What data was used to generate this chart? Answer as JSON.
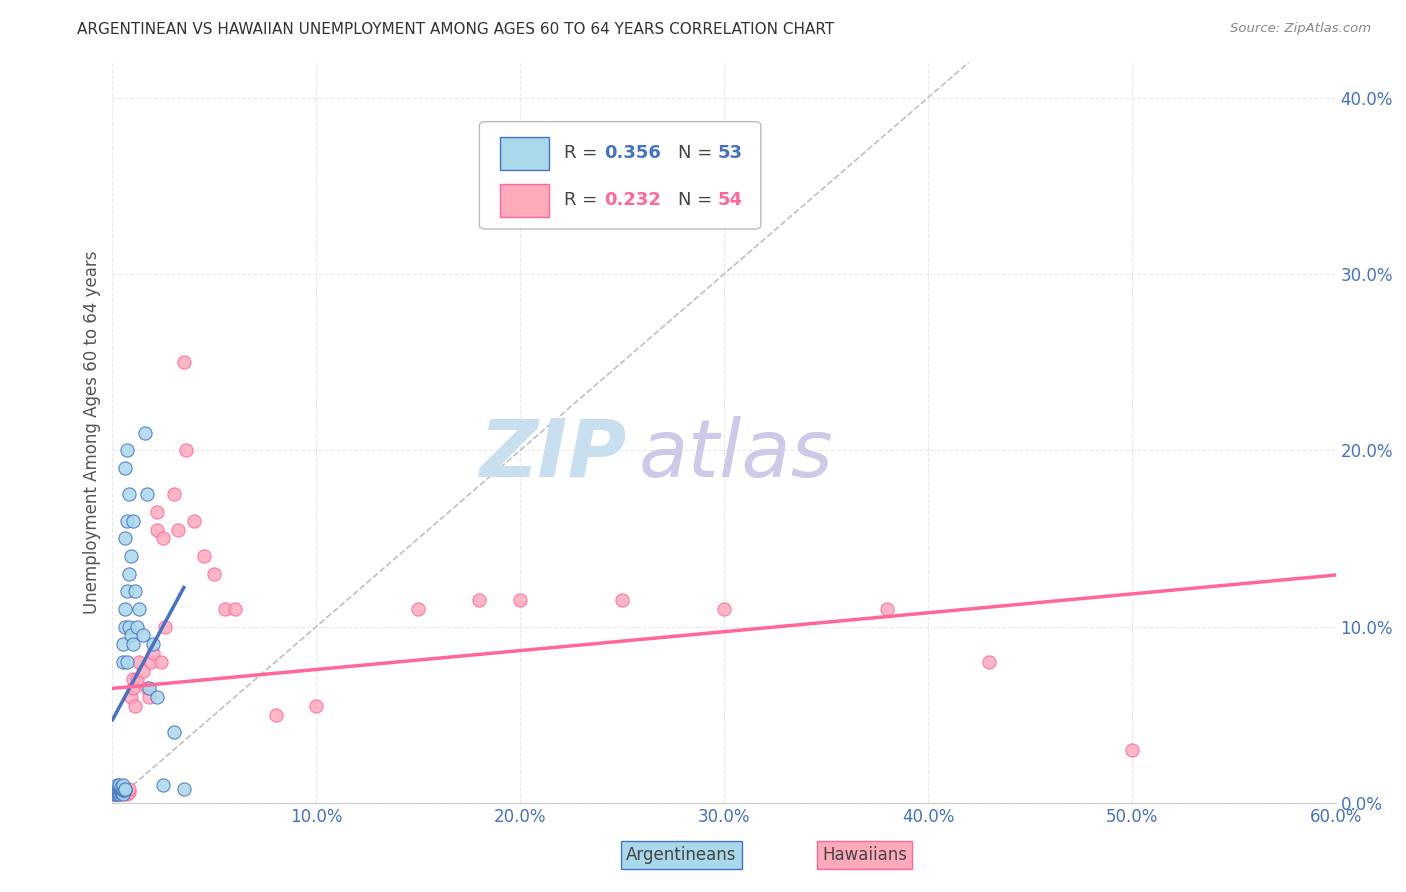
{
  "title": "ARGENTINEAN VS HAWAIIAN UNEMPLOYMENT AMONG AGES 60 TO 64 YEARS CORRELATION CHART",
  "source_text": "Source: ZipAtlas.com",
  "ylabel": "Unemployment Among Ages 60 to 64 years",
  "xlim": [
    0.0,
    0.6
  ],
  "ylim": [
    0.0,
    0.42
  ],
  "xticks": [
    0.0,
    0.1,
    0.2,
    0.3,
    0.4,
    0.5,
    0.6
  ],
  "yticks": [
    0.0,
    0.1,
    0.2,
    0.3,
    0.4
  ],
  "argentinean_R": 0.356,
  "argentinean_N": 53,
  "hawaiian_R": 0.232,
  "hawaiian_N": 54,
  "blue_fill": "#A8D8EA",
  "pink_fill": "#FFAABB",
  "blue_edge": "#4472C4",
  "pink_edge": "#FF6699",
  "blue_line": "#4472C4",
  "pink_line": "#FF6699",
  "diagonal_color": "#C0C0C0",
  "watermark_zip_color": "#C8DFF0",
  "watermark_atlas_color": "#D0C8E8",
  "tick_color": "#4472C4",
  "grid_color": "#E8E8E8",
  "argentinean_x": [
    0.001,
    0.001,
    0.001,
    0.001,
    0.002,
    0.002,
    0.002,
    0.002,
    0.002,
    0.003,
    0.003,
    0.003,
    0.003,
    0.003,
    0.004,
    0.004,
    0.004,
    0.004,
    0.005,
    0.005,
    0.005,
    0.005,
    0.005,
    0.005,
    0.006,
    0.006,
    0.006,
    0.006,
    0.006,
    0.006,
    0.007,
    0.007,
    0.007,
    0.007,
    0.008,
    0.008,
    0.008,
    0.009,
    0.009,
    0.01,
    0.01,
    0.011,
    0.012,
    0.013,
    0.015,
    0.016,
    0.017,
    0.018,
    0.02,
    0.022,
    0.025,
    0.03,
    0.035
  ],
  "argentinean_y": [
    0.005,
    0.006,
    0.007,
    0.008,
    0.005,
    0.006,
    0.007,
    0.008,
    0.01,
    0.005,
    0.006,
    0.008,
    0.009,
    0.01,
    0.006,
    0.007,
    0.008,
    0.009,
    0.005,
    0.007,
    0.008,
    0.01,
    0.08,
    0.09,
    0.007,
    0.008,
    0.1,
    0.11,
    0.15,
    0.19,
    0.08,
    0.12,
    0.16,
    0.2,
    0.1,
    0.13,
    0.175,
    0.095,
    0.14,
    0.09,
    0.16,
    0.12,
    0.1,
    0.11,
    0.095,
    0.21,
    0.175,
    0.065,
    0.09,
    0.06,
    0.01,
    0.04,
    0.008
  ],
  "hawaiian_x": [
    0.001,
    0.001,
    0.001,
    0.002,
    0.002,
    0.002,
    0.003,
    0.003,
    0.004,
    0.004,
    0.005,
    0.005,
    0.005,
    0.006,
    0.006,
    0.007,
    0.007,
    0.008,
    0.008,
    0.009,
    0.01,
    0.01,
    0.011,
    0.012,
    0.013,
    0.015,
    0.017,
    0.018,
    0.019,
    0.02,
    0.022,
    0.022,
    0.024,
    0.025,
    0.026,
    0.03,
    0.032,
    0.035,
    0.036,
    0.04,
    0.045,
    0.05,
    0.055,
    0.06,
    0.08,
    0.1,
    0.15,
    0.18,
    0.2,
    0.25,
    0.3,
    0.38,
    0.43,
    0.5
  ],
  "hawaiian_y": [
    0.005,
    0.006,
    0.007,
    0.005,
    0.007,
    0.008,
    0.006,
    0.008,
    0.005,
    0.007,
    0.006,
    0.007,
    0.008,
    0.006,
    0.008,
    0.005,
    0.007,
    0.006,
    0.008,
    0.06,
    0.065,
    0.07,
    0.055,
    0.07,
    0.08,
    0.075,
    0.065,
    0.06,
    0.08,
    0.085,
    0.155,
    0.165,
    0.08,
    0.15,
    0.1,
    0.175,
    0.155,
    0.25,
    0.2,
    0.16,
    0.14,
    0.13,
    0.11,
    0.11,
    0.05,
    0.055,
    0.11,
    0.115,
    0.115,
    0.115,
    0.11,
    0.11,
    0.08,
    0.03
  ]
}
